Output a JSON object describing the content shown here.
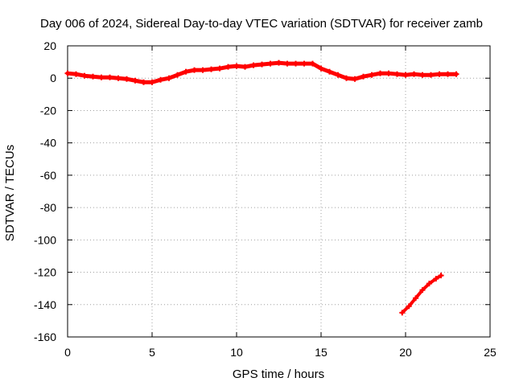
{
  "chart_data": {
    "type": "scatter",
    "title": "Day 006 of 2024, Sidereal Day-to-day VTEC variation (SDTVAR) for receiver zamb",
    "xlabel": "GPS time / hours",
    "ylabel": "SDTVAR / TECUs",
    "xlim": [
      0,
      25
    ],
    "ylim": [
      -160,
      20
    ],
    "xticks": [
      0,
      5,
      10,
      15,
      20,
      25
    ],
    "yticks": [
      20,
      0,
      -20,
      -40,
      -60,
      -80,
      -100,
      -120,
      -140,
      -160
    ],
    "grid": true,
    "marker": "plus",
    "series": [
      {
        "name": "main",
        "color": "#ff0000",
        "x": [
          0.0,
          0.5,
          1.0,
          1.5,
          2.0,
          2.5,
          3.0,
          3.5,
          4.0,
          4.5,
          5.0,
          5.5,
          6.0,
          6.5,
          7.0,
          7.5,
          8.0,
          8.5,
          9.0,
          9.5,
          10.0,
          10.5,
          11.0,
          11.5,
          12.0,
          12.5,
          13.0,
          13.5,
          14.0,
          14.5,
          15.0,
          15.5,
          16.0,
          16.5,
          17.0,
          17.5,
          18.0,
          18.5,
          19.0,
          19.5,
          20.0,
          20.5,
          21.0,
          21.5,
          22.0,
          22.5,
          23.0
        ],
        "y": [
          3,
          2.5,
          1.5,
          1,
          0.5,
          0.5,
          0,
          -0.5,
          -1.5,
          -2.5,
          -2.5,
          -1,
          0,
          2,
          4,
          5,
          5,
          5.5,
          6,
          7,
          7.5,
          7,
          8,
          8.5,
          9,
          9.5,
          9,
          9,
          9,
          9,
          6,
          4,
          2,
          0,
          -0.5,
          1,
          2,
          3,
          3,
          2.5,
          2,
          2.5,
          2,
          2,
          2.5,
          2.5,
          2.5
        ]
      },
      {
        "name": "segment",
        "color": "#ff0000",
        "x": [
          19.8,
          20.2,
          20.6,
          21.0,
          21.4,
          21.8,
          22.1
        ],
        "y": [
          -145,
          -141,
          -136,
          -131,
          -127,
          -124,
          -122
        ]
      }
    ]
  }
}
